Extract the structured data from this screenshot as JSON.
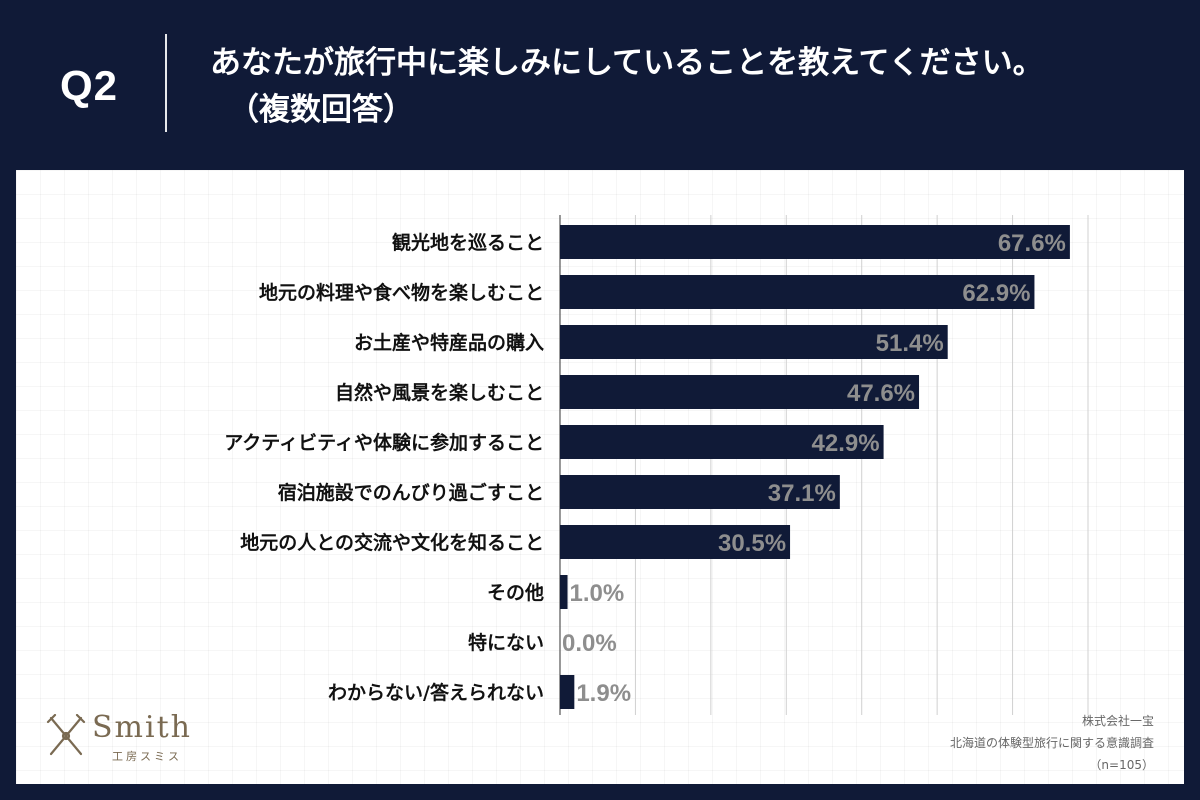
{
  "header": {
    "question_number": "Q2",
    "question_line1": "あなたが旅行中に楽しみにしていることを教えてください。",
    "question_line2": "（複数回答）"
  },
  "chart_data": {
    "type": "bar",
    "orientation": "horizontal",
    "categories": [
      "観光地を巡ること",
      "地元の料理や食べ物を楽しむこと",
      "お土産や特産品の購入",
      "自然や風景を楽しむこと",
      "アクティビティや体験に参加すること",
      "宿泊施設でのんびり過ごすこと",
      "地元の人との交流や文化を知ること",
      "その他",
      "特にない",
      "わからない/答えられない"
    ],
    "values": [
      67.6,
      62.9,
      51.4,
      47.6,
      42.9,
      37.1,
      30.5,
      1.0,
      0.0,
      1.9
    ],
    "value_labels": [
      "67.6%",
      "62.9%",
      "51.4%",
      "47.6%",
      "42.9%",
      "37.1%",
      "30.5%",
      "1.0%",
      "0.0%",
      "1.9%"
    ],
    "xlim": [
      0,
      70
    ],
    "unit": "%",
    "bar_color": "#101a37",
    "grid": true
  },
  "footer": {
    "company": "株式会社一宝",
    "survey": "北海道の体験型旅行に関する意識調査",
    "sample": "（n=105）"
  },
  "logo": {
    "word": "Smith",
    "sub": "工房スミス"
  },
  "colors": {
    "navy": "#101a37",
    "label_gray": "#8e8e8e",
    "logo_gold": "#7a6a52"
  }
}
